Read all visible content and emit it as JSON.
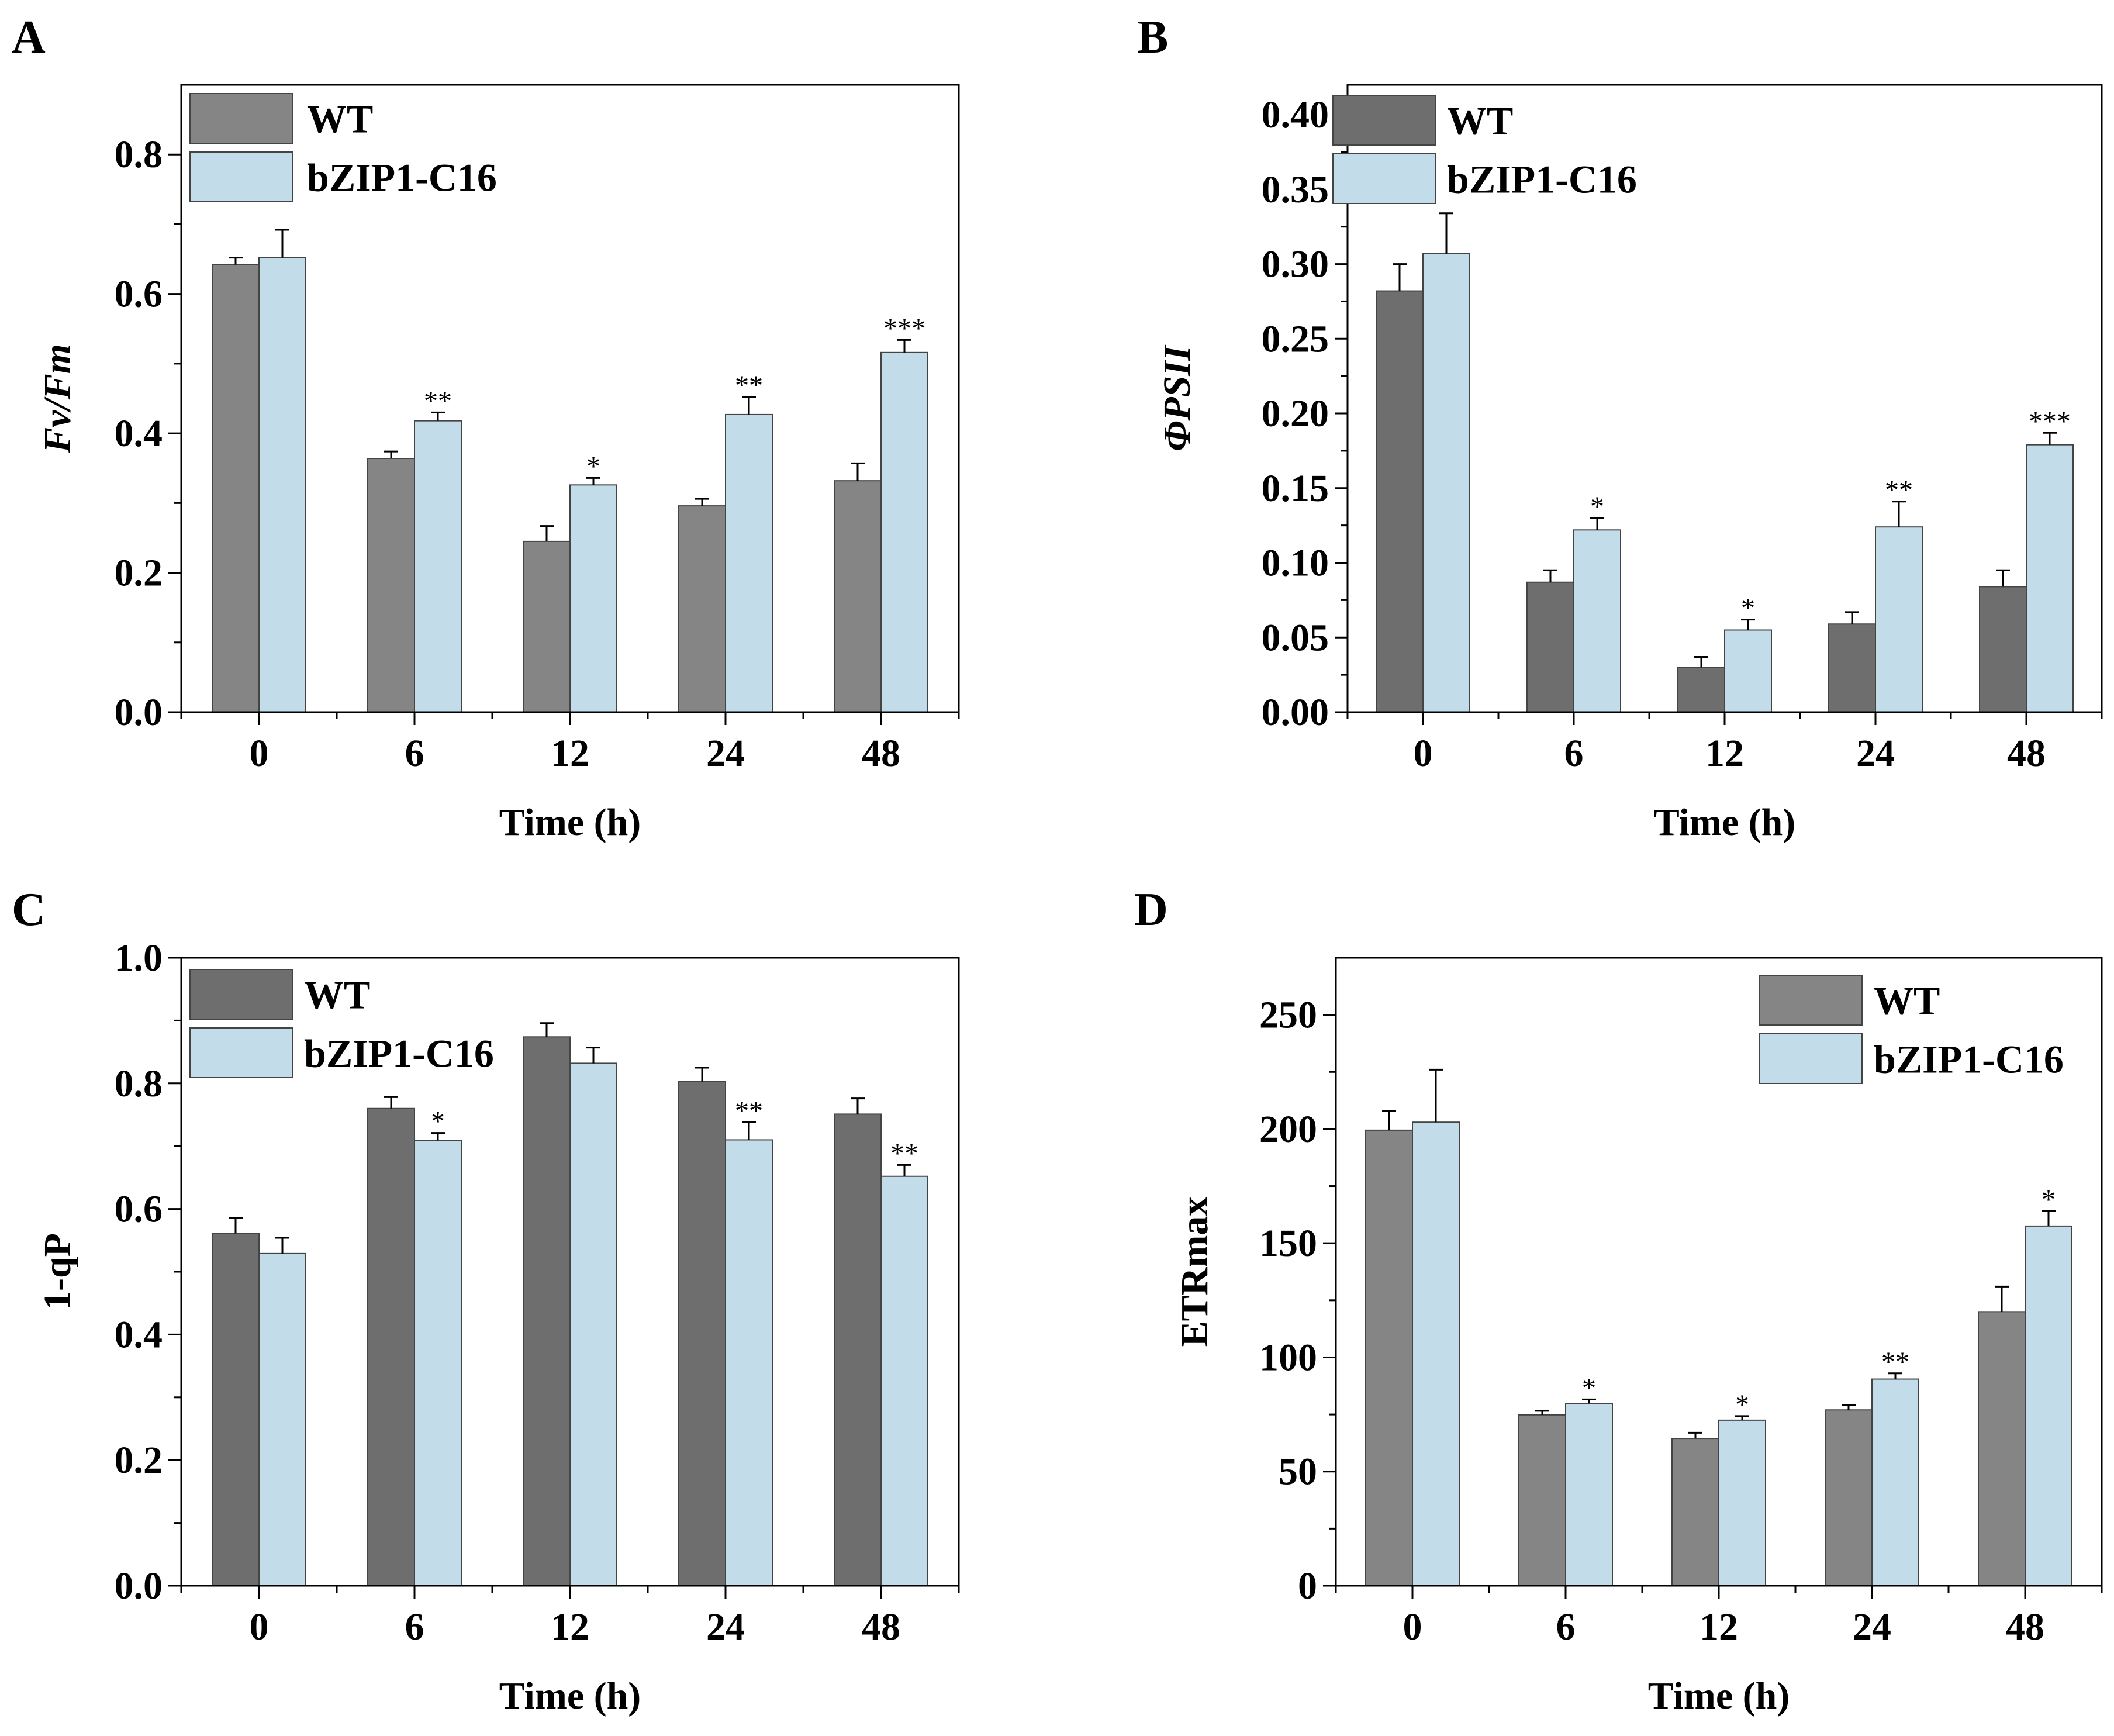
{
  "colors": {
    "series_a_dark": "#6e6e6e",
    "series_a_mid": "#858585",
    "series_b": "#c2dcea"
  },
  "chart_data": [
    {
      "panel": "A",
      "type": "bar",
      "title": "",
      "xlabel": "Time (h)",
      "ylabel": "Fv/Fm",
      "ylabel_italic": true,
      "categories": [
        "0",
        "6",
        "12",
        "24",
        "48"
      ],
      "ylim": [
        0,
        0.9
      ],
      "yticks": [
        0.0,
        0.2,
        0.4,
        0.6,
        0.8
      ],
      "ytick_labels": [
        "0.0",
        "0.2",
        "0.4",
        "0.6",
        "0.8"
      ],
      "legend_position": "top-left",
      "series": [
        {
          "name": "WT",
          "color_key": "series_a_mid",
          "values": [
            0.642,
            0.364,
            0.245,
            0.296,
            0.332
          ],
          "errors": [
            0.01,
            0.01,
            0.022,
            0.01,
            0.025
          ],
          "sig": [
            "",
            "",
            "",
            "",
            ""
          ]
        },
        {
          "name": "bZIP1-C16",
          "color_key": "series_b",
          "values": [
            0.652,
            0.418,
            0.326,
            0.427,
            0.516
          ],
          "errors": [
            0.04,
            0.012,
            0.01,
            0.025,
            0.018
          ],
          "sig": [
            "",
            "**",
            "*",
            "**",
            "***"
          ]
        }
      ]
    },
    {
      "panel": "B",
      "type": "bar",
      "title": "",
      "xlabel": "Time (h)",
      "ylabel": "ΦPSII",
      "ylabel_italic": true,
      "categories": [
        "0",
        "6",
        "12",
        "24",
        "48"
      ],
      "ylim": [
        0,
        0.42
      ],
      "yticks": [
        0.0,
        0.05,
        0.1,
        0.15,
        0.2,
        0.25,
        0.3,
        0.35,
        0.4
      ],
      "ytick_labels": [
        "0.00",
        "0.05",
        "0.10",
        "0.15",
        "0.20",
        "0.25",
        "0.30",
        "0.35",
        "0.40"
      ],
      "legend_position": "top-left",
      "series": [
        {
          "name": "WT",
          "color_key": "series_a_dark",
          "values": [
            0.282,
            0.087,
            0.03,
            0.059,
            0.084
          ],
          "errors": [
            0.018,
            0.008,
            0.007,
            0.008,
            0.011
          ],
          "sig": [
            "",
            "",
            "",
            "",
            ""
          ]
        },
        {
          "name": "bZIP1-C16",
          "color_key": "series_b",
          "values": [
            0.307,
            0.122,
            0.055,
            0.124,
            0.179
          ],
          "errors": [
            0.027,
            0.008,
            0.007,
            0.017,
            0.008
          ],
          "sig": [
            "",
            "*",
            "*",
            "**",
            "***"
          ]
        }
      ]
    },
    {
      "panel": "C",
      "type": "bar",
      "title": "",
      "xlabel": "Time (h)",
      "ylabel": "1-qP",
      "ylabel_italic": false,
      "categories": [
        "0",
        "6",
        "12",
        "24",
        "48"
      ],
      "ylim": [
        0,
        1.0
      ],
      "yticks": [
        0.0,
        0.2,
        0.4,
        0.6,
        0.8,
        1.0
      ],
      "ytick_labels": [
        "0.0",
        "0.2",
        "0.4",
        "0.6",
        "0.8",
        "1.0"
      ],
      "legend_position": "top-left",
      "series": [
        {
          "name": "WT",
          "color_key": "series_a_dark",
          "values": [
            0.561,
            0.76,
            0.874,
            0.803,
            0.751
          ],
          "errors": [
            0.025,
            0.018,
            0.022,
            0.022,
            0.025
          ],
          "sig": [
            "",
            "",
            "",
            "",
            ""
          ]
        },
        {
          "name": "bZIP1-C16",
          "color_key": "series_b",
          "values": [
            0.529,
            0.709,
            0.832,
            0.71,
            0.652
          ],
          "errors": [
            0.025,
            0.012,
            0.025,
            0.028,
            0.018
          ],
          "sig": [
            "",
            "*",
            "",
            "**",
            "**"
          ]
        }
      ]
    },
    {
      "panel": "D",
      "type": "bar",
      "title": "",
      "xlabel": "Time (h)",
      "ylabel": "ETRmax",
      "ylabel_italic": false,
      "categories": [
        "0",
        "6",
        "12",
        "24",
        "48"
      ],
      "ylim": [
        0,
        275
      ],
      "yticks": [
        0,
        50,
        100,
        150,
        200,
        250
      ],
      "ytick_labels": [
        "0",
        "50",
        "100",
        "150",
        "200",
        "250"
      ],
      "legend_position": "top-right",
      "series": [
        {
          "name": "WT",
          "color_key": "series_a_mid",
          "values": [
            199.5,
            74.8,
            64.5,
            77.0,
            120.0
          ],
          "errors": [
            8.5,
            1.8,
            2.5,
            2.0,
            11.0
          ],
          "sig": [
            "",
            "",
            "",
            "",
            ""
          ]
        },
        {
          "name": "bZIP1-C16",
          "color_key": "series_b",
          "values": [
            203.0,
            79.8,
            72.5,
            90.5,
            157.5
          ],
          "errors": [
            23.0,
            1.8,
            1.8,
            2.5,
            6.5
          ],
          "sig": [
            "",
            "*",
            "*",
            "**",
            "*"
          ]
        }
      ]
    }
  ]
}
